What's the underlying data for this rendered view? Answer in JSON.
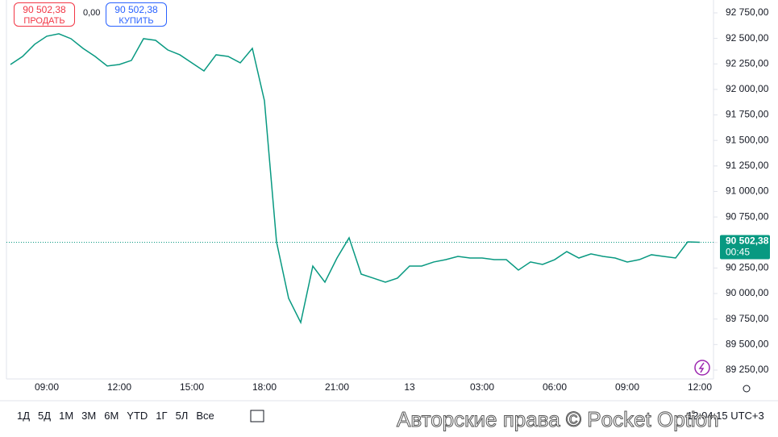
{
  "header": {
    "sell": {
      "price": "90 502,38",
      "label": "ПРОДАТЬ"
    },
    "spread": "0,00",
    "buy": {
      "price": "90 502,38",
      "label": "КУПИТЬ"
    }
  },
  "chart_data": {
    "type": "line",
    "categories": [
      null,
      null,
      null,
      "09:00",
      null,
      null,
      null,
      null,
      null,
      "12:00",
      null,
      null,
      null,
      null,
      null,
      "15:00",
      null,
      null,
      null,
      null,
      null,
      "18:00",
      null,
      null,
      null,
      null,
      null,
      "21:00",
      null,
      null,
      null,
      null,
      null,
      "13",
      null,
      null,
      null,
      null,
      null,
      "03:00",
      null,
      null,
      null,
      null,
      null,
      "06:00",
      null,
      null,
      null,
      null,
      null,
      "09:00",
      null,
      null,
      null,
      null,
      null,
      "12:00"
    ],
    "values": [
      92244,
      92323,
      92442,
      92521,
      92545,
      92497,
      92402,
      92323,
      92229,
      92244,
      92284,
      92497,
      92481,
      92387,
      92339,
      92260,
      92181,
      92339,
      92323,
      92260,
      92402,
      91889,
      90506,
      89953,
      89716,
      90269,
      90111,
      90348,
      90546,
      90190,
      90151,
      90111,
      90151,
      90269,
      90269,
      90309,
      90332,
      90364,
      90348,
      90348,
      90332,
      90332,
      90230,
      90309,
      90285,
      90332,
      90411,
      90348,
      90388,
      90364,
      90348,
      90309,
      90332,
      90380,
      90364,
      90348,
      90506,
      90502.38
    ],
    "color": "#089981",
    "ylim": [
      89163,
      92876
    ],
    "yticks": [
      {
        "value": 92750,
        "label": "92 750,00"
      },
      {
        "value": 92500,
        "label": "92 500,00"
      },
      {
        "value": 92250,
        "label": "92 250,00"
      },
      {
        "value": 92000,
        "label": "92 000,00"
      },
      {
        "value": 91750,
        "label": "91 750,00"
      },
      {
        "value": 91500,
        "label": "91 500,00"
      },
      {
        "value": 91250,
        "label": "91 250,00"
      },
      {
        "value": 91000,
        "label": "91 000,00"
      },
      {
        "value": 90750,
        "label": "90 750,00"
      },
      {
        "value": 90500,
        "label": "90 500,00"
      },
      {
        "value": 90250,
        "label": "90 250,00"
      },
      {
        "value": 90000,
        "label": "90 000,00"
      },
      {
        "value": 89750,
        "label": "89 750,00"
      },
      {
        "value": 89500,
        "label": "89 500,00"
      },
      {
        "value": 89250,
        "label": "89 250,00"
      }
    ],
    "last_price": {
      "value": 90502.38,
      "label": "90 502,38",
      "timer": "00:45"
    },
    "grid": false
  },
  "toolbar": {
    "ranges": [
      "1Д",
      "5Д",
      "1М",
      "3М",
      "6М",
      "YTD",
      "1Г",
      "5Л",
      "Все"
    ]
  },
  "clock": "12:04:15 UTC+3",
  "watermark": "Авторские права © Pocket Option"
}
